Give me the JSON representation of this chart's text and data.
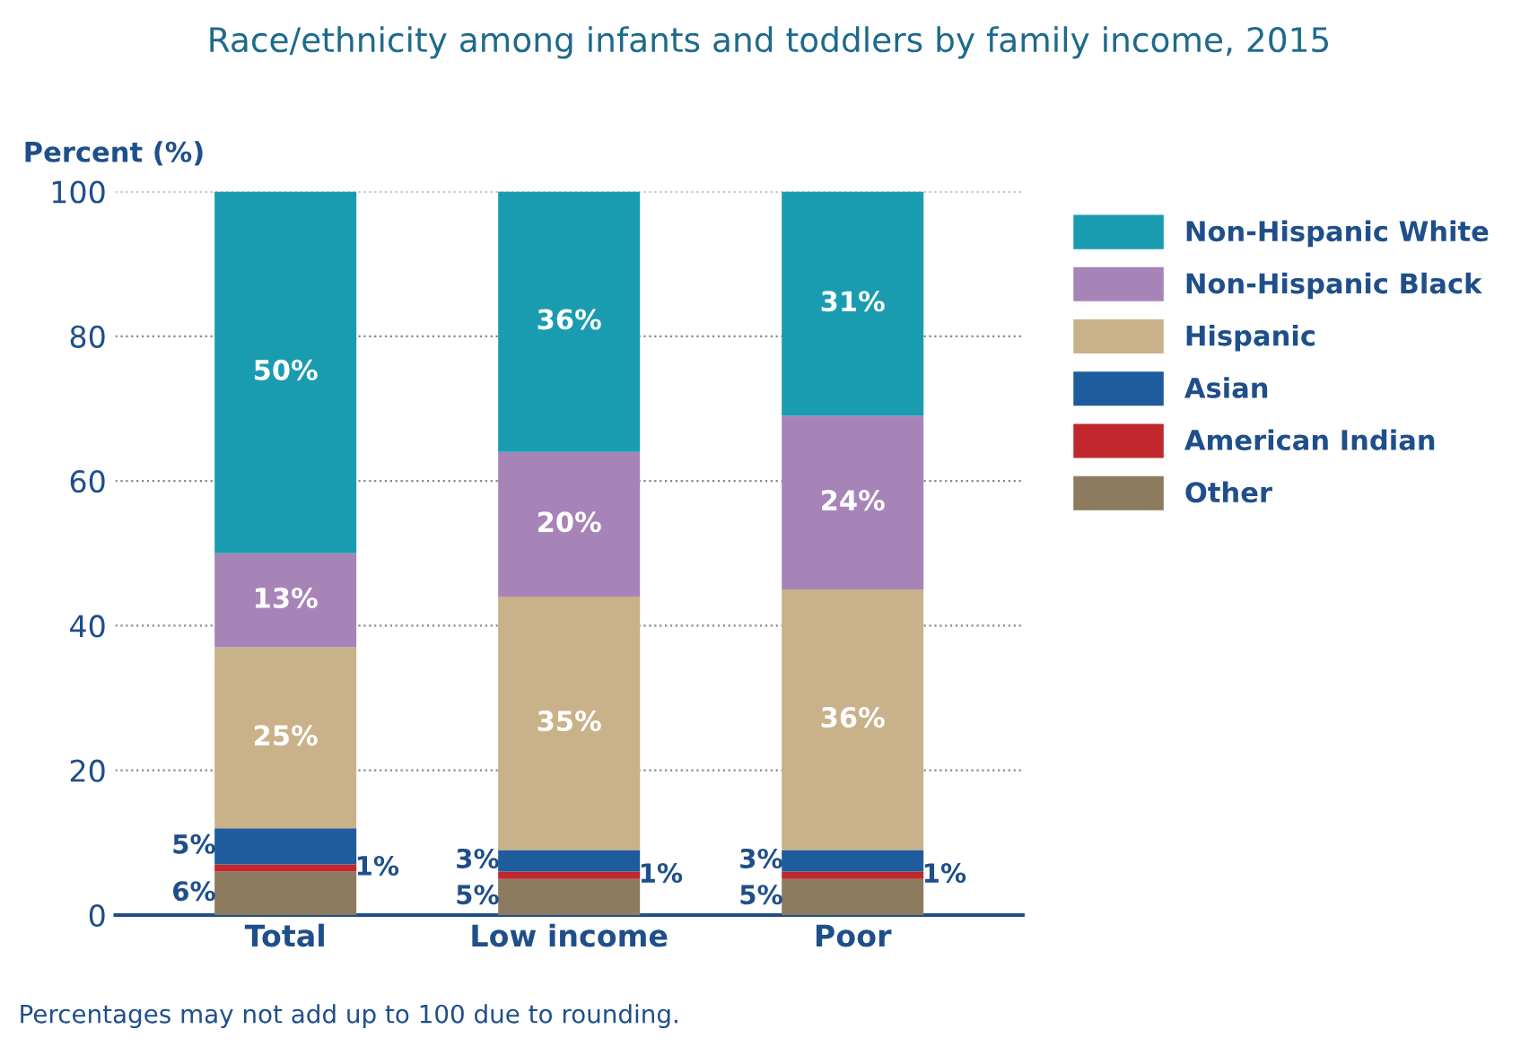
{
  "chart_data": {
    "type": "bar",
    "stacked": true,
    "title": "Race/ethnicity among infants and toddlers by family income, 2015",
    "ylabel": "Percent (%)",
    "categories": [
      "Total",
      "Low income",
      "Poor"
    ],
    "series": [
      {
        "name": "Other",
        "color": "#8c7b5e",
        "values": [
          6,
          5,
          5
        ],
        "value_labels": [
          "6%",
          "5%",
          "5%"
        ]
      },
      {
        "name": "American Indian",
        "color": "#c0282d",
        "values": [
          1,
          1,
          1
        ],
        "value_labels": [
          "1%",
          "1%",
          "1%"
        ]
      },
      {
        "name": "Asian",
        "color": "#1e5c9e",
        "values": [
          5,
          3,
          3
        ],
        "value_labels": [
          "5%",
          "3%",
          "3%"
        ]
      },
      {
        "name": "Hispanic",
        "color": "#c9b28a",
        "values": [
          25,
          35,
          36
        ],
        "value_labels": [
          "25%",
          "35%",
          "36%"
        ]
      },
      {
        "name": "Non-Hispanic Black",
        "color": "#a784b8",
        "values": [
          13,
          20,
          24
        ],
        "value_labels": [
          "13%",
          "20%",
          "24%"
        ]
      },
      {
        "name": "Non-Hispanic White",
        "color": "#1a9cb0",
        "values": [
          50,
          36,
          31
        ],
        "value_labels": [
          "50%",
          "36%",
          "31%"
        ]
      }
    ],
    "ylim": [
      0,
      100
    ],
    "yticks": [
      0,
      20,
      40,
      60,
      80,
      100
    ],
    "grid": "y",
    "legend": "right",
    "annotations": [
      "Percentages may not add up to 100 due to rounding."
    ]
  }
}
